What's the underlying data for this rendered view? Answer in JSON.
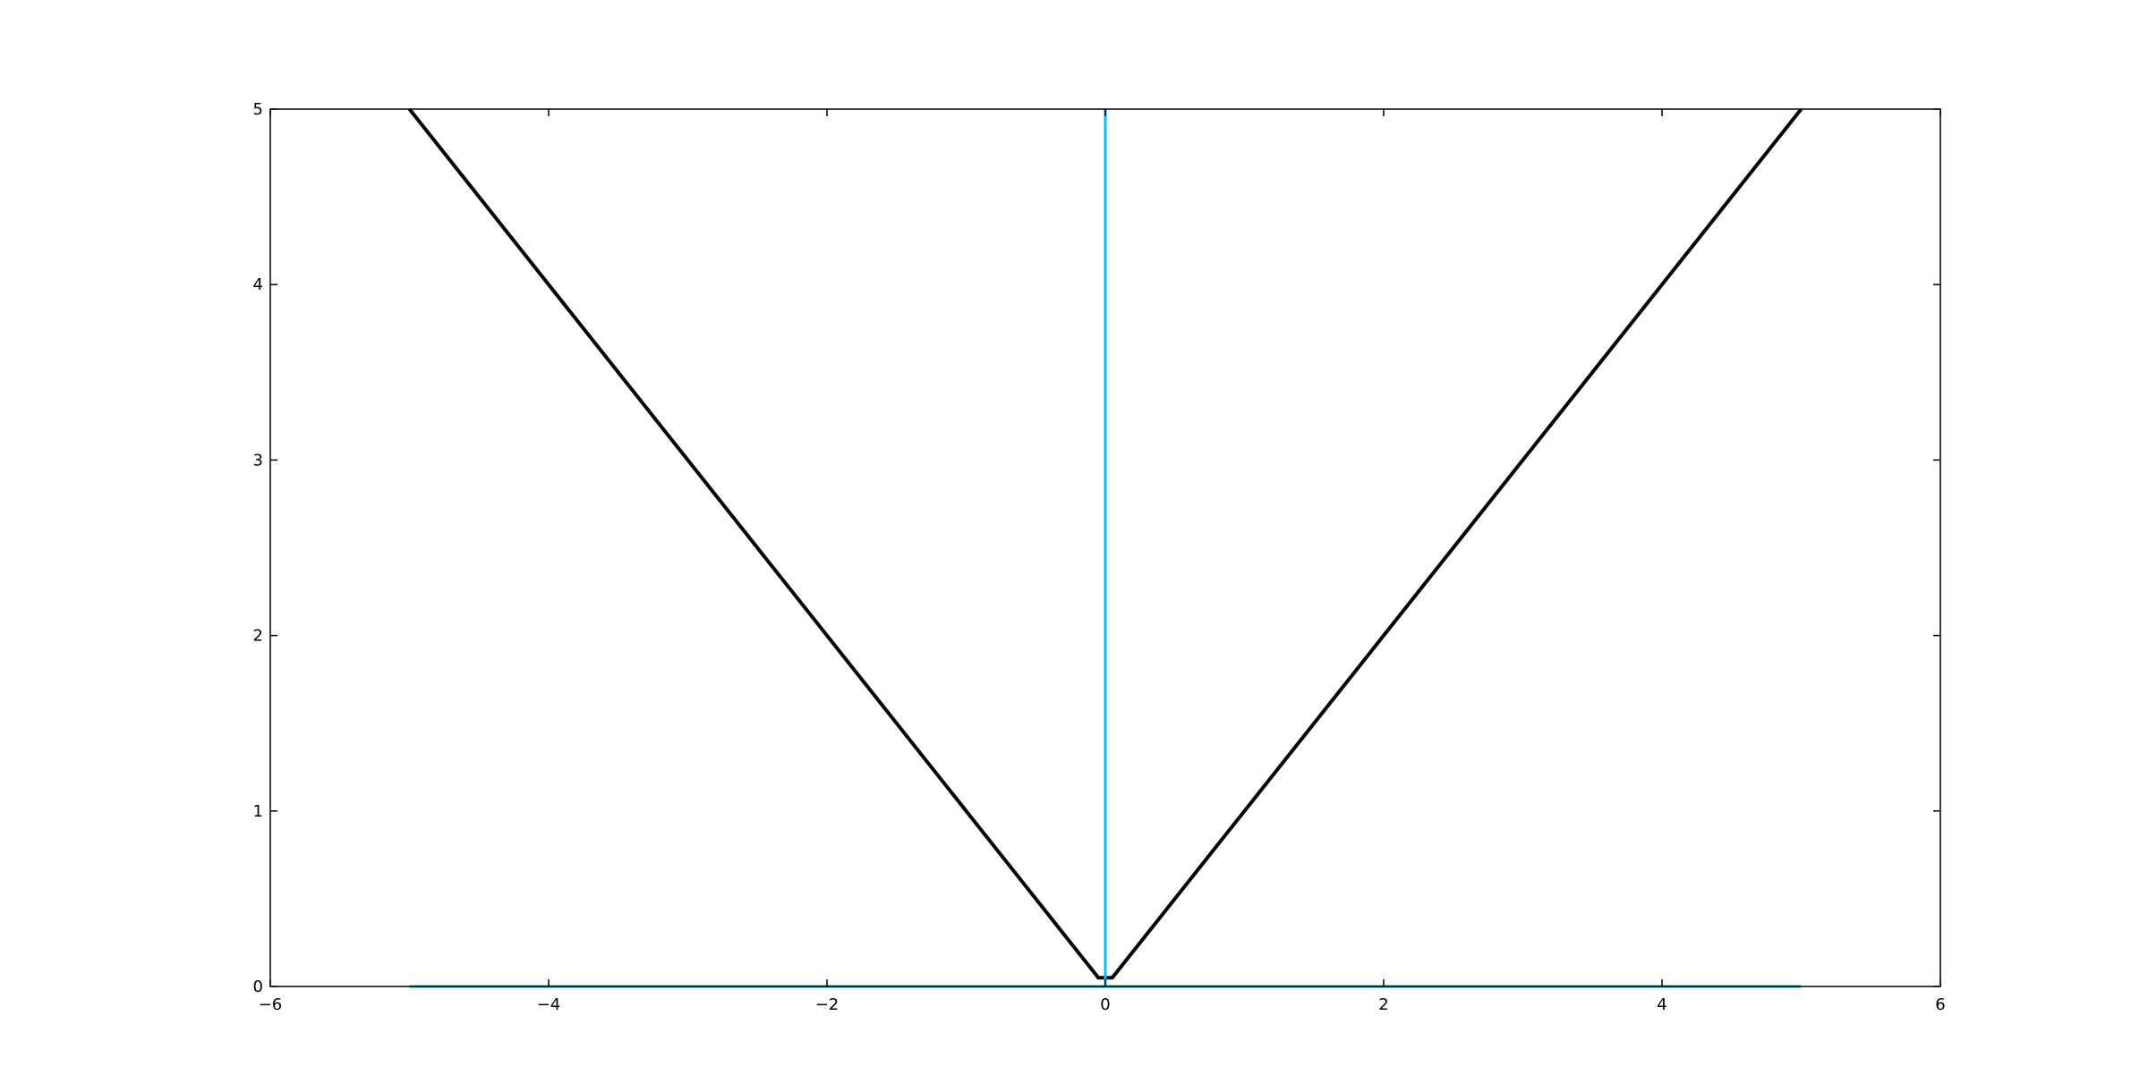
{
  "chart_data": {
    "type": "line",
    "title": "",
    "xlabel": "",
    "ylabel": "",
    "xlim": [
      -6,
      6
    ],
    "ylim": [
      0,
      5
    ],
    "x_ticks": [
      -6,
      -4,
      -2,
      0,
      2,
      4,
      6
    ],
    "x_tick_labels": [
      "−6",
      "−4",
      "−2",
      "0",
      "2",
      "4",
      "6"
    ],
    "y_ticks": [
      0,
      1,
      2,
      3,
      4,
      5
    ],
    "y_tick_labels": [
      "0",
      "1",
      "2",
      "3",
      "4",
      "5"
    ],
    "grid": false,
    "legend": "none",
    "series": [
      {
        "color": "#000000",
        "points": [
          [
            -5.0,
            5.0
          ],
          [
            -0.05,
            0.05
          ],
          [
            0.05,
            0.05
          ],
          [
            5.0,
            5.0
          ]
        ]
      },
      {
        "color": "#00bfff",
        "points": [
          [
            0.0,
            0.0
          ],
          [
            0.0,
            5.0
          ]
        ]
      },
      {
        "color": "#00bfbf",
        "points": [
          [
            -5.0,
            0.0
          ],
          [
            5.0,
            0.0
          ]
        ]
      }
    ]
  }
}
